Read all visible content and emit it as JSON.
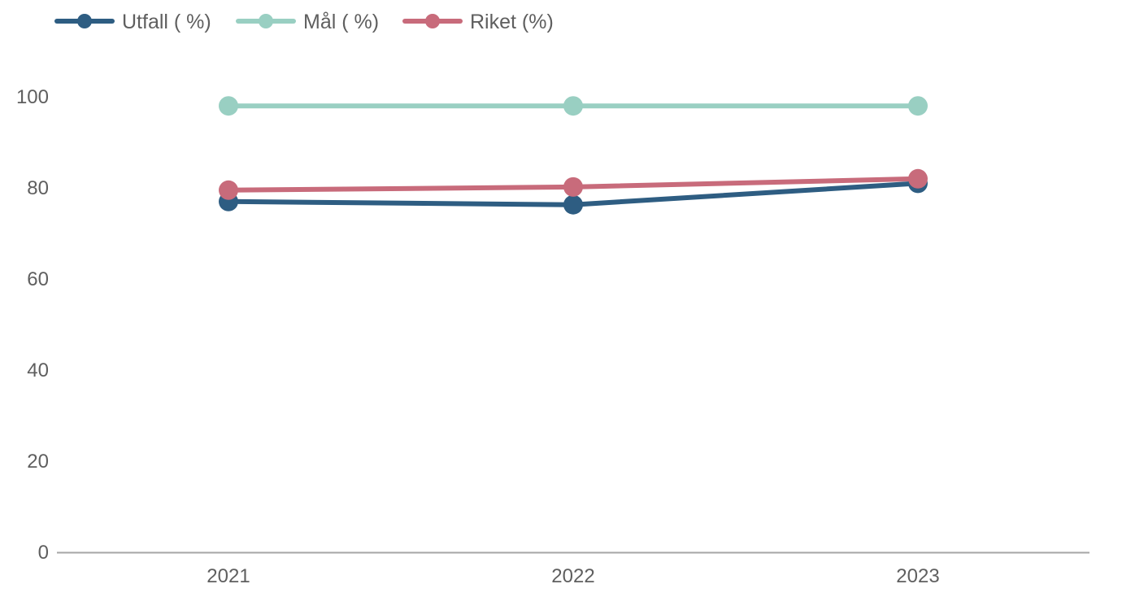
{
  "chart_data": {
    "type": "line",
    "x": [
      "2021",
      "2022",
      "2023"
    ],
    "ylim": [
      0,
      100
    ],
    "yticks": [
      0,
      20,
      40,
      60,
      80,
      100
    ],
    "grid": false,
    "legend_position": "top-left",
    "series": [
      {
        "name": "Utfall ( %)",
        "color": "#2e5d82",
        "values": [
          77,
          76.3,
          81
        ]
      },
      {
        "name": "Mål ( %)",
        "color": "#99cfc2",
        "values": [
          98,
          98,
          98
        ]
      },
      {
        "name": "Riket (%)",
        "color": "#c86b7b",
        "values": [
          79.5,
          80.2,
          82
        ]
      }
    ]
  }
}
